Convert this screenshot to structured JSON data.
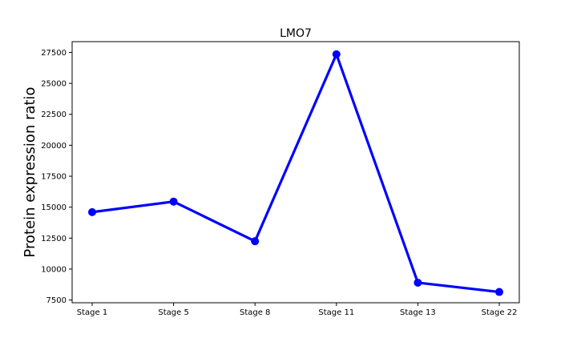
{
  "chart_data": {
    "type": "line",
    "title": "LMO7",
    "xlabel": "",
    "ylabel": "Protein expression ratio",
    "categories": [
      "Stage 1",
      "Stage 5",
      "Stage 8",
      "Stage 11",
      "Stage 13",
      "Stage 22"
    ],
    "series": [
      {
        "values": [
          14600,
          15450,
          12250,
          27350,
          8900,
          8150
        ]
      }
    ],
    "yticks": [
      7500,
      10000,
      12500,
      15000,
      17500,
      20000,
      22500,
      25000,
      27500
    ],
    "ytick_labels": [
      "7500",
      "10000",
      "12500",
      "15000",
      "17500",
      "20000",
      "22500",
      "25000",
      "27500"
    ],
    "ylim": [
      7280,
      28370
    ],
    "line_color": "#0000ff",
    "grid": false,
    "legend": "none"
  }
}
